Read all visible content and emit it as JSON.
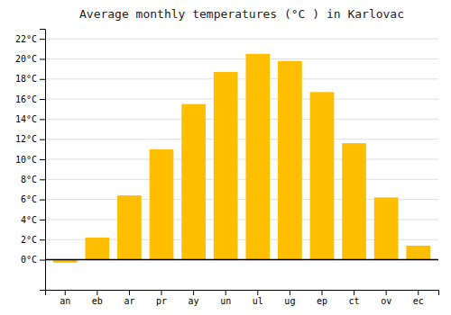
{
  "chart_data": {
    "type": "bar",
    "title": "Average monthly temperatures (°C ) in Karlovac",
    "categories": [
      "an",
      "eb",
      "ar",
      "pr",
      "ay",
      "un",
      "ul",
      "ug",
      "ep",
      "ct",
      "ov",
      "ec"
    ],
    "values": [
      -0.3,
      2.2,
      6.4,
      11.0,
      15.5,
      18.7,
      20.5,
      19.8,
      16.7,
      11.6,
      6.2,
      1.4
    ],
    "color": "#FFBE00",
    "ylim": [
      -3,
      23
    ],
    "yticks": [
      {
        "value": 0,
        "label": "0°C"
      },
      {
        "value": 2,
        "label": "2°C"
      },
      {
        "value": 4,
        "label": "4°C"
      },
      {
        "value": 6,
        "label": "6°C"
      },
      {
        "value": 8,
        "label": "8°C"
      },
      {
        "value": 10,
        "label": "10°C"
      },
      {
        "value": 12,
        "label": "12°C"
      },
      {
        "value": 14,
        "label": "14°C"
      },
      {
        "value": 16,
        "label": "16°C"
      },
      {
        "value": 18,
        "label": "18°C"
      },
      {
        "value": 20,
        "label": "20°C"
      },
      {
        "value": 22,
        "label": "22°C"
      }
    ],
    "grid": true
  }
}
